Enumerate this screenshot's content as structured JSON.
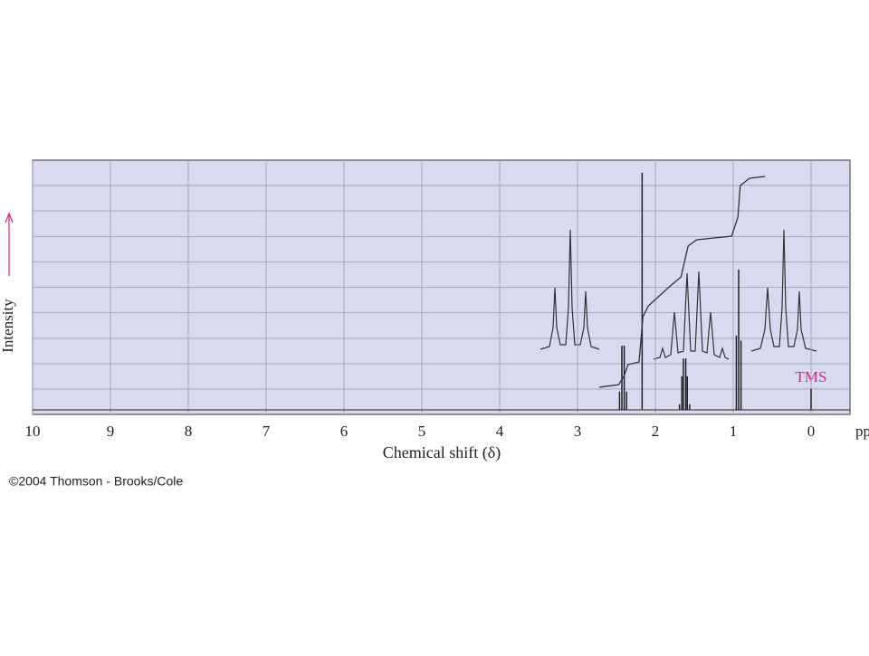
{
  "chart_data": {
    "type": "nmr",
    "xlabel": "Chemical shift (δ)",
    "x_unit": "ppm",
    "ylabel": "Intensity",
    "annotation": "TMS",
    "credit": "©2004 Thomson - Brooks/Cole",
    "xlim": [
      10,
      -0.5
    ],
    "xticks": [
      10,
      9,
      8,
      7,
      6,
      5,
      4,
      3,
      2,
      1,
      0
    ],
    "ylim": [
      0,
      10
    ],
    "background": "#d9d9ef",
    "grid_color": "#a9a9bd",
    "annotation_color": "#e0208a",
    "peaks": {
      "color": "#222",
      "x": [
        2.46,
        2.43,
        2.4,
        2.37,
        2.17,
        1.69,
        1.66,
        1.64,
        1.61,
        1.59,
        1.56,
        0.96,
        0.93,
        0.9,
        0
      ],
      "values": [
        0.9,
        2.7,
        2.7,
        0.9,
        9.5,
        0.4,
        1.5,
        2.2,
        2.2,
        1.5,
        0.4,
        3.1,
        5.7,
        2.9,
        1.0
      ]
    },
    "integral": {
      "color": "#333",
      "x": [
        2.72,
        2.47,
        2.4,
        2.35,
        2.21,
        2.16,
        2.09,
        1.81,
        1.67,
        1.58,
        1.47,
        1.02,
        0.94,
        0.91,
        0.79,
        0.59
      ],
      "values": [
        1.07,
        1.17,
        1.53,
        1.96,
        2.06,
        3.84,
        4.27,
        5.05,
        5.41,
        6.62,
        6.87,
        7.01,
        7.76,
        9.0,
        9.29,
        9.36
      ]
    }
  }
}
